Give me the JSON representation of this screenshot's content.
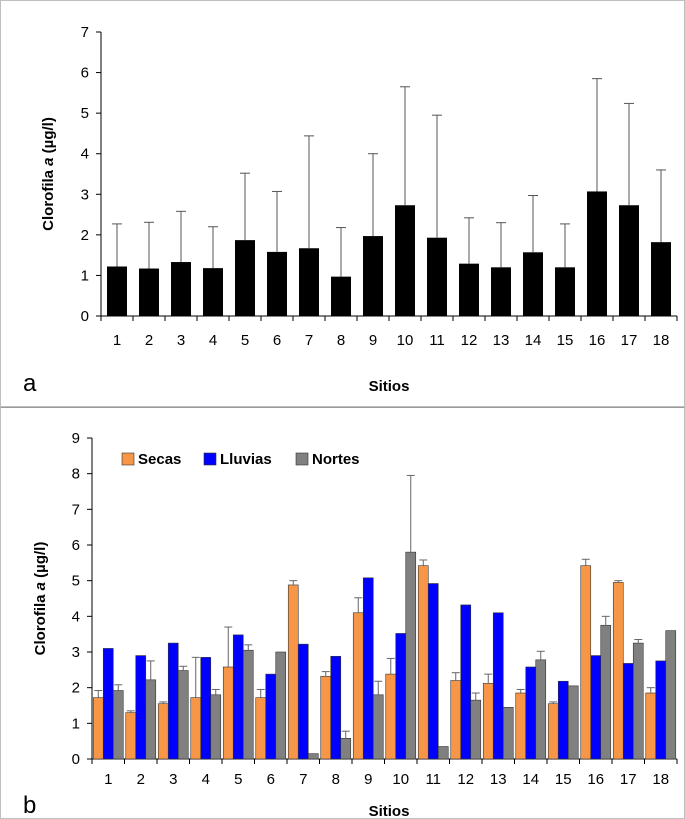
{
  "chart_data": [
    {
      "type": "bar",
      "panel_label": "a",
      "title": "",
      "xlabel": "Sitios",
      "ylabel_prefix": "Clorofila ",
      "ylabel_italic": "a",
      "ylabel_suffix": " (µg/l)",
      "ylim": [
        0,
        7
      ],
      "yticks": [
        0,
        1,
        2,
        3,
        4,
        5,
        6,
        7
      ],
      "grid": false,
      "categories": [
        "1",
        "2",
        "3",
        "4",
        "5",
        "6",
        "7",
        "8",
        "9",
        "10",
        "11",
        "12",
        "13",
        "14",
        "15",
        "16",
        "17",
        "18"
      ],
      "series": [
        {
          "color": "#000000",
          "values": [
            1.22,
            1.17,
            1.33,
            1.18,
            1.87,
            1.58,
            1.67,
            0.97,
            1.97,
            2.73,
            1.93,
            1.29,
            1.2,
            1.57,
            1.2,
            3.07,
            2.73,
            1.82
          ],
          "error_upper": [
            2.27,
            2.31,
            2.58,
            2.2,
            3.52,
            3.07,
            4.44,
            2.18,
            4.0,
            5.65,
            4.95,
            2.42,
            2.3,
            2.97,
            2.27,
            5.85,
            5.24,
            3.6
          ]
        }
      ]
    },
    {
      "type": "bar",
      "panel_label": "b",
      "title": "",
      "xlabel": "Sitios",
      "ylabel_prefix": "Clorofila ",
      "ylabel_italic": "a",
      "ylabel_suffix": " (µg/l)",
      "ylim": [
        0,
        9
      ],
      "yticks": [
        0,
        1,
        2,
        3,
        4,
        5,
        6,
        7,
        8,
        9
      ],
      "grid": false,
      "legend_position": "top-left",
      "categories": [
        "1",
        "2",
        "3",
        "4",
        "5",
        "6",
        "7",
        "8",
        "9",
        "10",
        "11",
        "12",
        "13",
        "14",
        "15",
        "16",
        "17",
        "18"
      ],
      "series": [
        {
          "name": "Secas",
          "color": "#f79646",
          "values": [
            1.72,
            1.3,
            1.55,
            1.72,
            2.58,
            1.72,
            4.88,
            2.32,
            4.1,
            2.38,
            5.42,
            2.2,
            2.12,
            1.85,
            1.55,
            5.42,
            4.95,
            1.85
          ],
          "error_upper": [
            1.92,
            1.35,
            1.6,
            2.85,
            3.7,
            1.95,
            5.0,
            2.45,
            4.52,
            2.82,
            5.58,
            2.42,
            2.38,
            1.95,
            1.6,
            5.6,
            5.0,
            2.0
          ]
        },
        {
          "name": "Lluvias",
          "color": "#0000ff",
          "values": [
            3.1,
            2.9,
            3.25,
            2.85,
            3.48,
            2.38,
            3.22,
            2.88,
            5.08,
            3.52,
            4.92,
            4.32,
            4.1,
            2.58,
            2.18,
            2.9,
            2.68,
            2.75
          ],
          "error_upper": [
            3.1,
            2.9,
            3.25,
            2.85,
            3.48,
            2.38,
            3.22,
            2.88,
            5.08,
            3.52,
            4.92,
            4.32,
            4.1,
            2.58,
            2.18,
            2.9,
            2.68,
            2.75
          ]
        },
        {
          "name": "Nortes",
          "color": "#808080",
          "values": [
            1.92,
            2.22,
            2.48,
            1.8,
            3.05,
            3.0,
            0.15,
            0.58,
            1.8,
            5.8,
            0.35,
            1.65,
            1.45,
            2.78,
            2.05,
            3.75,
            3.25,
            3.6
          ],
          "error_upper": [
            2.08,
            2.75,
            2.6,
            1.95,
            3.2,
            3.0,
            0.15,
            0.78,
            2.18,
            7.95,
            0.35,
            1.85,
            1.45,
            3.02,
            2.05,
            4.0,
            3.35,
            3.6
          ]
        }
      ]
    }
  ]
}
